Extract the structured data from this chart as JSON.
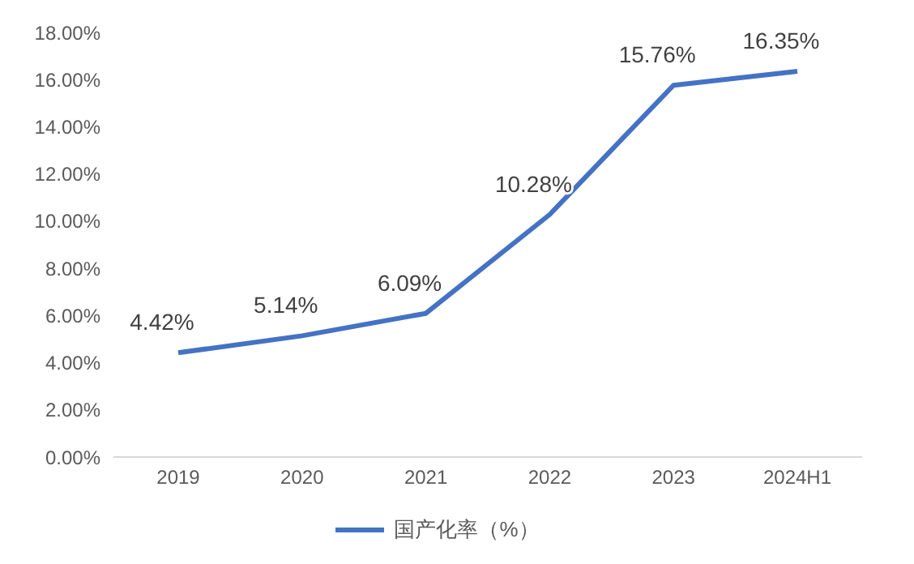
{
  "chart_data": {
    "type": "line",
    "categories": [
      "2019",
      "2020",
      "2021",
      "2022",
      "2023",
      "2024H1"
    ],
    "series": [
      {
        "name": "国产化率（%）",
        "color": "#4472c4",
        "values": [
          4.42,
          5.14,
          6.09,
          10.28,
          15.76,
          16.35
        ],
        "value_labels": [
          "4.42%",
          "5.14%",
          "6.09%",
          "10.28%",
          "15.76%",
          "16.35%"
        ]
      }
    ],
    "ylim": [
      0,
      18
    ],
    "yticks": [
      {
        "value": 0,
        "label": "0.00%"
      },
      {
        "value": 2,
        "label": "2.00%"
      },
      {
        "value": 4,
        "label": "4.00%"
      },
      {
        "value": 6,
        "label": "6.00%"
      },
      {
        "value": 8,
        "label": "8.00%"
      },
      {
        "value": 10,
        "label": "10.00%"
      },
      {
        "value": 12,
        "label": "12.00%"
      },
      {
        "value": 14,
        "label": "14.00%"
      },
      {
        "value": 16,
        "label": "16.00%"
      },
      {
        "value": 18,
        "label": "18.00%"
      }
    ],
    "grid": false,
    "legend": "bottom",
    "marker": "none",
    "line_style": "solid"
  }
}
